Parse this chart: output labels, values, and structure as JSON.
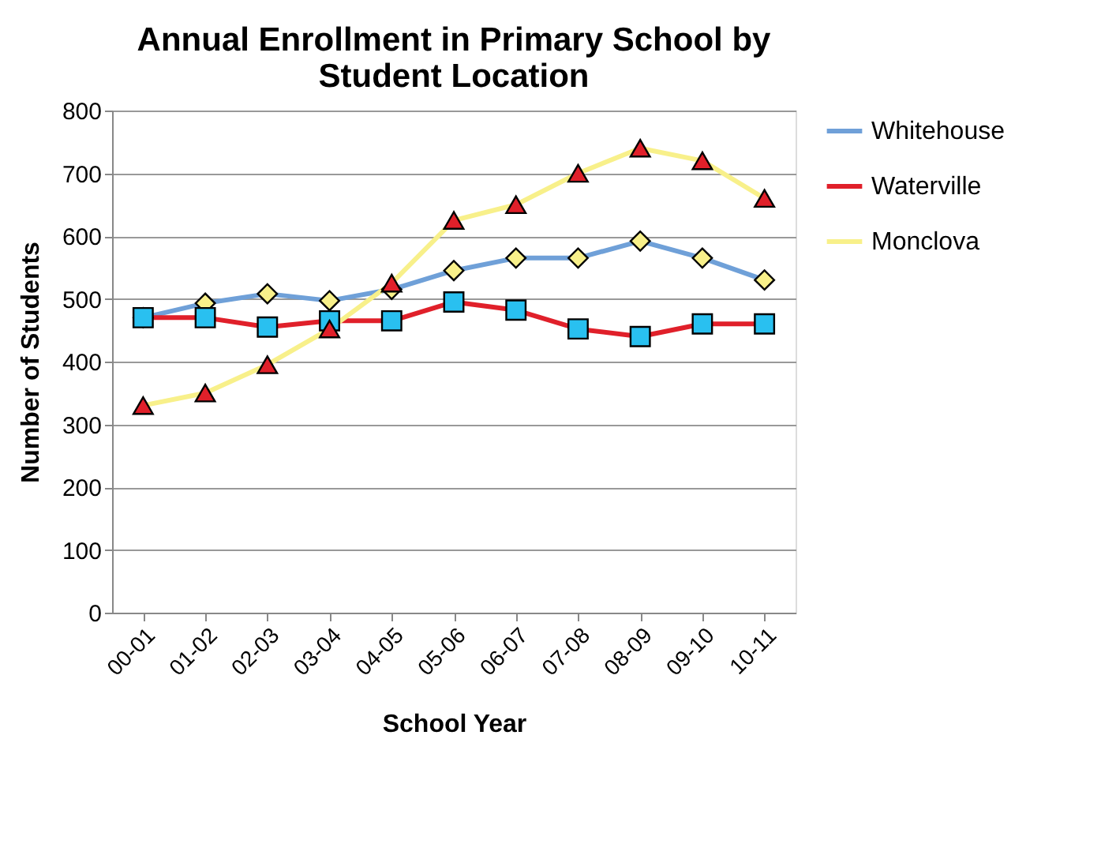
{
  "chart_data": {
    "type": "line",
    "title": "Annual Enrollment in Primary School by\nStudent Location",
    "xlabel": "School Year",
    "ylabel": "Number of Students",
    "categories": [
      "00-01",
      "01-02",
      "02-03",
      "03-04",
      "04-05",
      "05-06",
      "06-07",
      "07-08",
      "08-09",
      "09-10",
      "10-11"
    ],
    "series": [
      {
        "name": "Whitehouse",
        "color": "#6fa0d8",
        "marker": "diamond",
        "colors": [
          "#f8f08a",
          "#f8f08a",
          "#f8f08a",
          "#f8f08a",
          "#f8f08a",
          "#f8f08a",
          "#f8f08a",
          "#f8f08a",
          "#f8f08a",
          "#f8f08a",
          "#f8f08a"
        ],
        "values": [
          470,
          493,
          508,
          497,
          515,
          545,
          565,
          565,
          592,
          565,
          530
        ]
      },
      {
        "name": "Waterville",
        "color": "#e0202a",
        "marker": "square",
        "colors": [
          "#29c0f0",
          "#29c0f0",
          "#29c0f0",
          "#29c0f0",
          "#29c0f0",
          "#29c0f0",
          "#29c0f0",
          "#29c0f0",
          "#29c0f0",
          "#29c0f0",
          "#29c0f0"
        ],
        "values": [
          470,
          470,
          455,
          465,
          465,
          495,
          482,
          452,
          440,
          460,
          460
        ]
      },
      {
        "name": "Monclova",
        "color": "#f8f08a",
        "marker": "triangle",
        "colors": [
          "#e0202a",
          "#e0202a",
          "#e0202a",
          "#e0202a",
          "#e0202a",
          "#e0202a",
          "#e0202a",
          "#e0202a",
          "#e0202a",
          "#e0202a",
          "#e0202a"
        ],
        "values": [
          330,
          350,
          395,
          452,
          525,
          625,
          650,
          700,
          740,
          720,
          660
        ]
      }
    ],
    "ylim": [
      0,
      800
    ],
    "yticks": [
      0,
      100,
      200,
      300,
      400,
      500,
      600,
      700,
      800
    ],
    "grid": "y",
    "legend": "right"
  }
}
